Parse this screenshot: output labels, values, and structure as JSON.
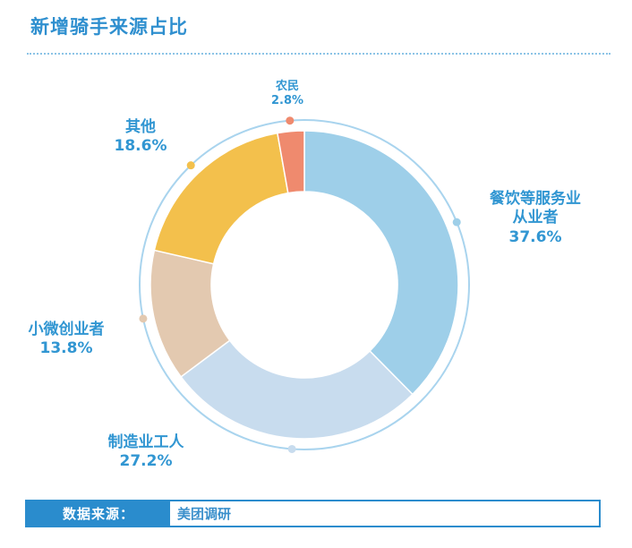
{
  "title": "新增骑手来源占比",
  "chart_data": {
    "type": "pie",
    "variant": "donut",
    "title": "新增骑手来源占比",
    "slices": [
      {
        "name": "餐饮等服务业从业者",
        "name_lines": [
          "餐饮等服务业",
          "从业者"
        ],
        "value": 37.6,
        "label": "37.6%",
        "color": "#9ecfe9"
      },
      {
        "name": "制造业工人",
        "name_lines": [
          "制造业工人"
        ],
        "value": 27.2,
        "label": "27.2%",
        "color": "#c8dcee"
      },
      {
        "name": "小微创业者",
        "name_lines": [
          "小微创业者"
        ],
        "value": 13.8,
        "label": "13.8%",
        "color": "#e3c9b0"
      },
      {
        "name": "其他",
        "name_lines": [
          "其他"
        ],
        "value": 18.6,
        "label": "18.6%",
        "color": "#f3c04c"
      },
      {
        "name": "农民",
        "name_lines": [
          "农民"
        ],
        "value": 2.8,
        "label": "2.8%",
        "color": "#ef8a6e"
      }
    ]
  },
  "source": {
    "label": "数据来源：",
    "value": "美团调研"
  }
}
